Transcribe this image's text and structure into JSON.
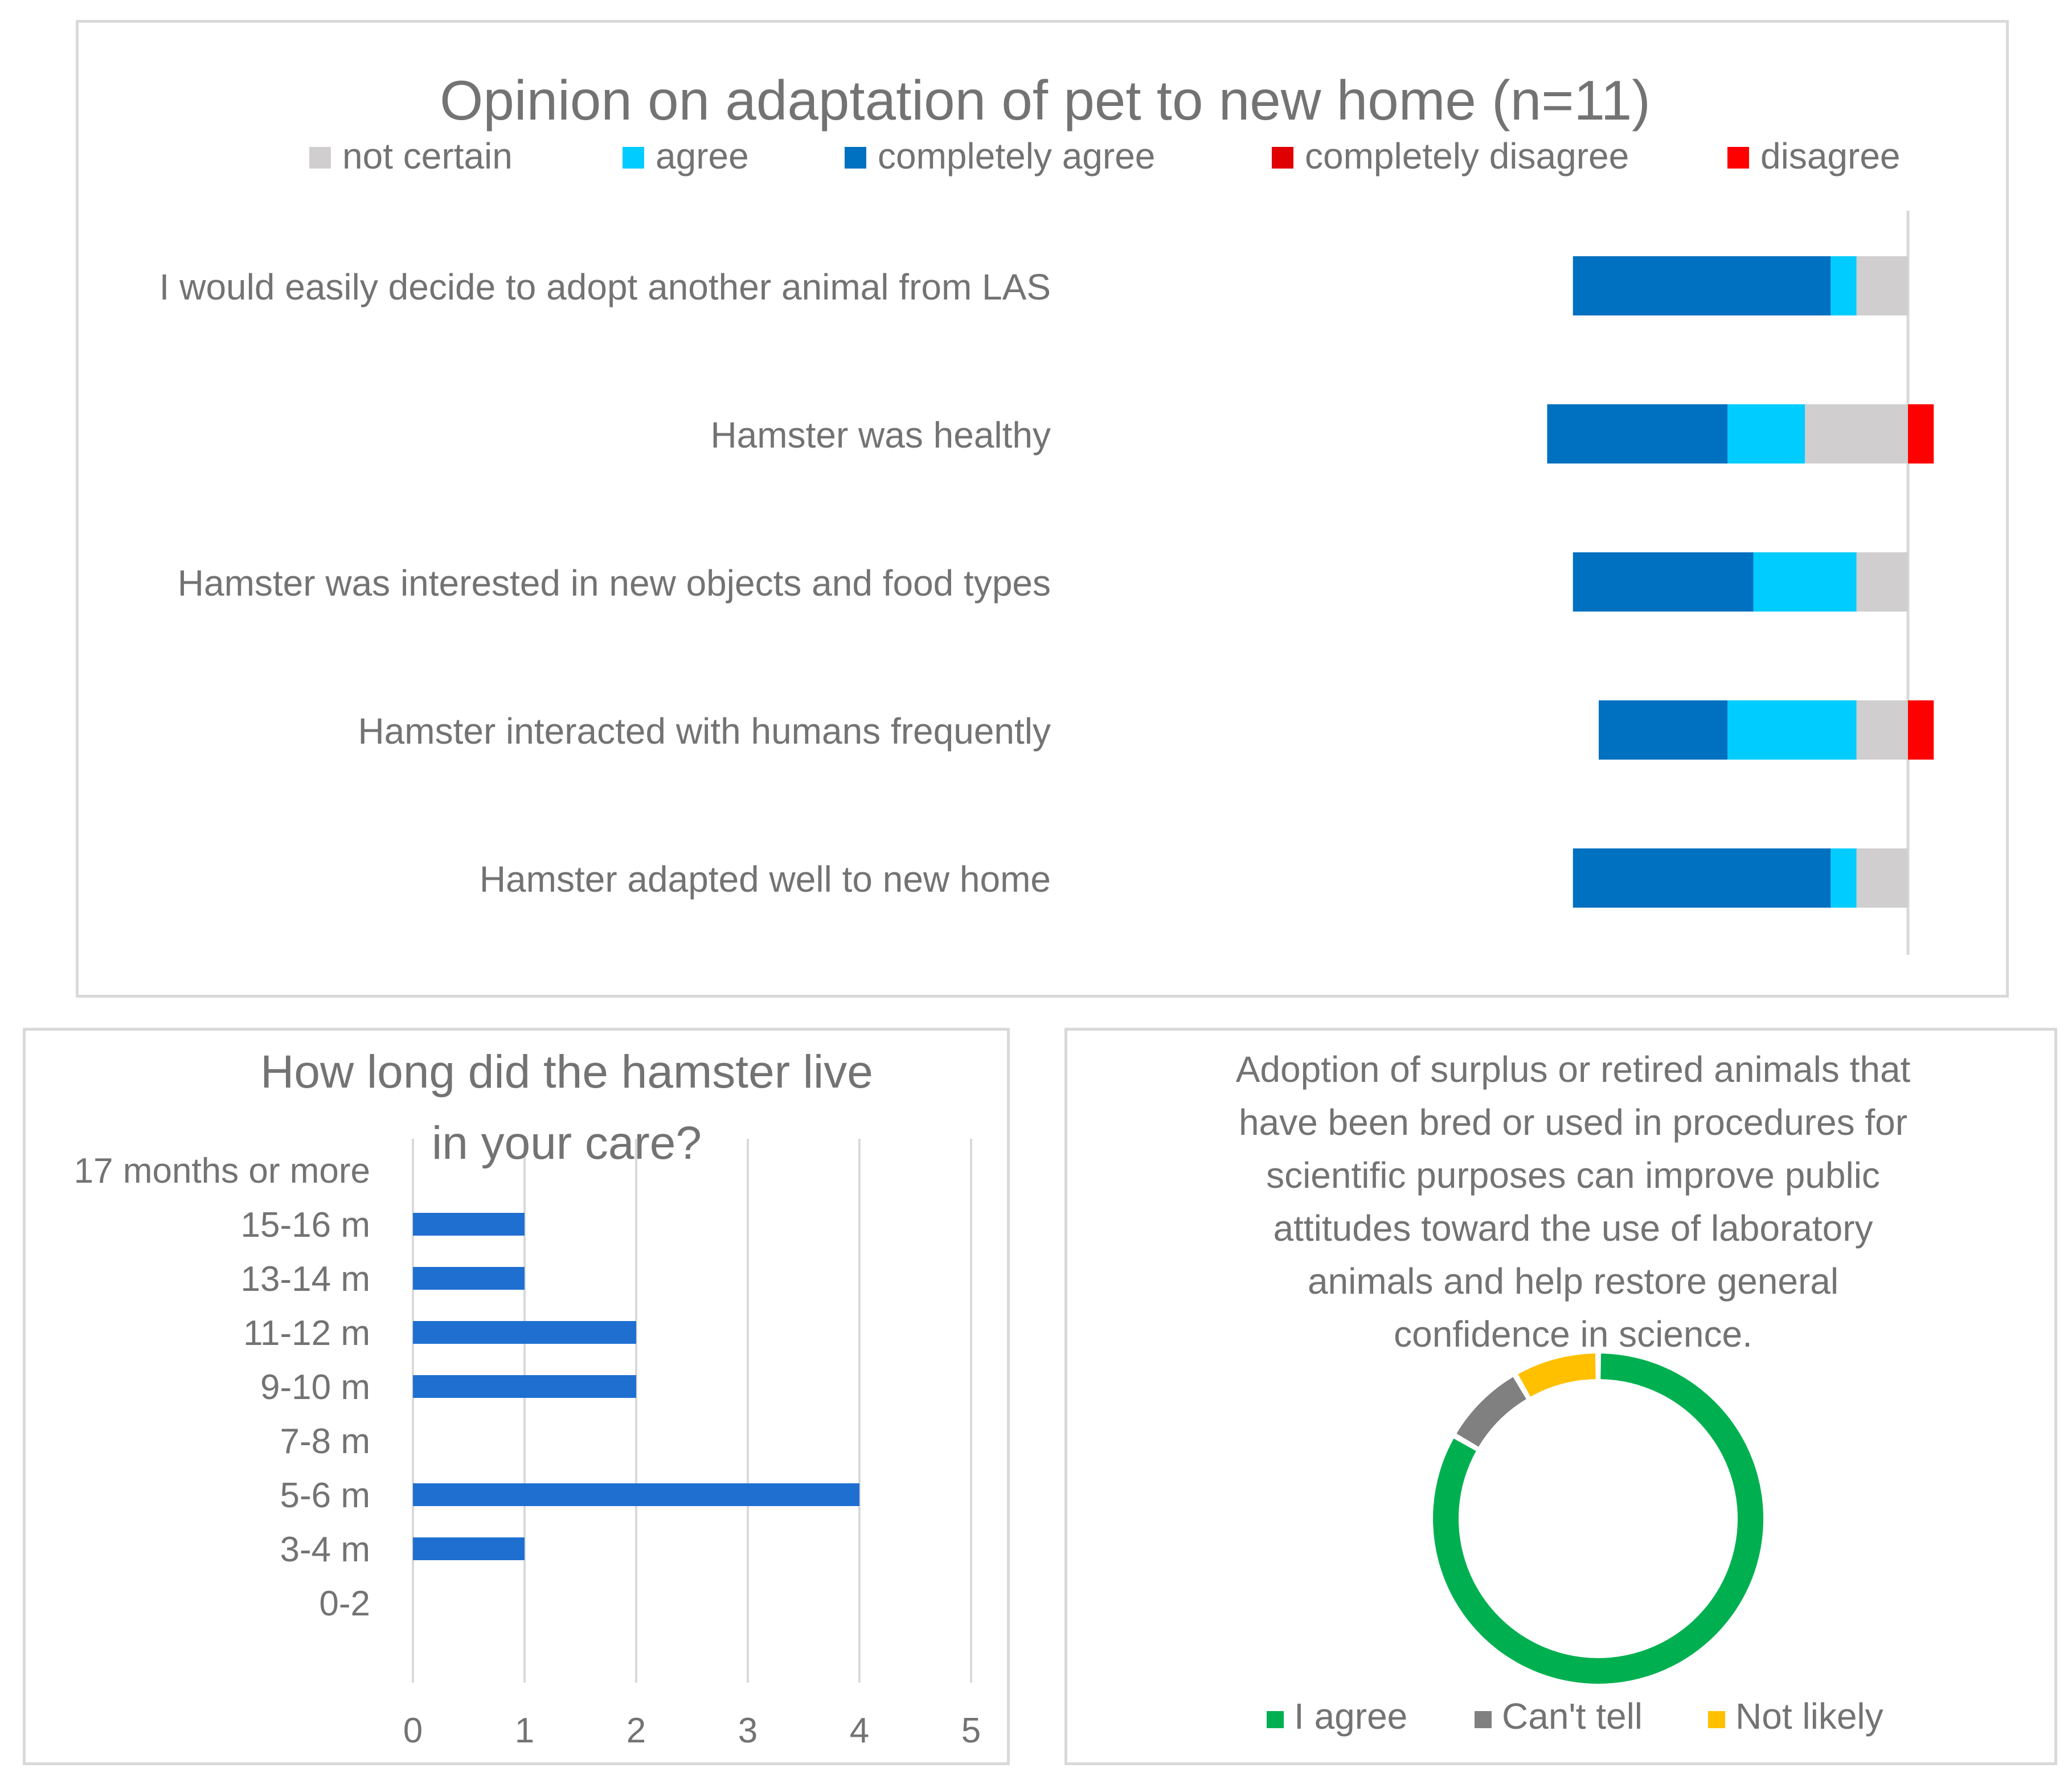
{
  "chart_data": [
    {
      "type": "bar",
      "orientation": "horizontal",
      "stacked": "diverging",
      "title": "Opinion on adaptation of pet to new home (n=11)",
      "legend_position": "top",
      "categories": [
        "I would easily decide to adopt another animal from LAS",
        "Hamster was healthy",
        "Hamster was interested in new objects and food types",
        "Hamster interacted with humans frequently",
        "Hamster adapted well to new home"
      ],
      "series": [
        {
          "name": "not certain",
          "color": "#d0cece",
          "values": [
            1,
            2,
            1,
            1,
            1
          ]
        },
        {
          "name": "agree",
          "color": "#00ccff",
          "values": [
            0.5,
            1.5,
            2,
            2.5,
            0.5
          ]
        },
        {
          "name": "completely agree",
          "color": "#0070c0",
          "values": [
            5,
            3.5,
            3.5,
            2.5,
            5
          ]
        },
        {
          "name": "completely disagree",
          "color": "#e00000",
          "values": [
            0,
            0,
            0,
            0,
            0
          ]
        },
        {
          "name": "disagree",
          "color": "#ff0000",
          "values": [
            0,
            0.5,
            0,
            0.5,
            0
          ]
        }
      ],
      "grid": false
    },
    {
      "type": "bar",
      "orientation": "horizontal",
      "title": "How long did the hamster live in your care?",
      "categories": [
        "17 months or more",
        "15-16 m",
        "13-14 m",
        "11-12 m",
        "9-10 m",
        "7-8 m",
        "5-6 m",
        "3-4 m",
        "0-2"
      ],
      "values": [
        0,
        1,
        1,
        2,
        2,
        0,
        4,
        1,
        0
      ],
      "xlim": [
        0,
        5
      ],
      "xticks": [
        "0",
        "1",
        "2",
        "3",
        "4",
        "5"
      ],
      "bar_color": "#1f6fd1",
      "grid": true
    },
    {
      "type": "pie",
      "donut": true,
      "title": "Adoption of surplus or retired animals that have been bred or used in procedures for scientific purposes can improve public attitudes toward the use of laboratory animals and help restore general confidence in science.",
      "title_lines": [
        "Adoption of surplus or retired animals that",
        "have been bred or used in procedures for",
        "scientific purposes can improve public",
        "attitudes toward the use of laboratory",
        "animals and help restore general",
        "confidence in science."
      ],
      "labels": [
        "I agree",
        "Can't tell",
        "Not likely"
      ],
      "values": [
        10,
        1,
        1
      ],
      "colors": [
        "#00b050",
        "#808080",
        "#ffc000"
      ],
      "legend_position": "bottom"
    }
  ]
}
